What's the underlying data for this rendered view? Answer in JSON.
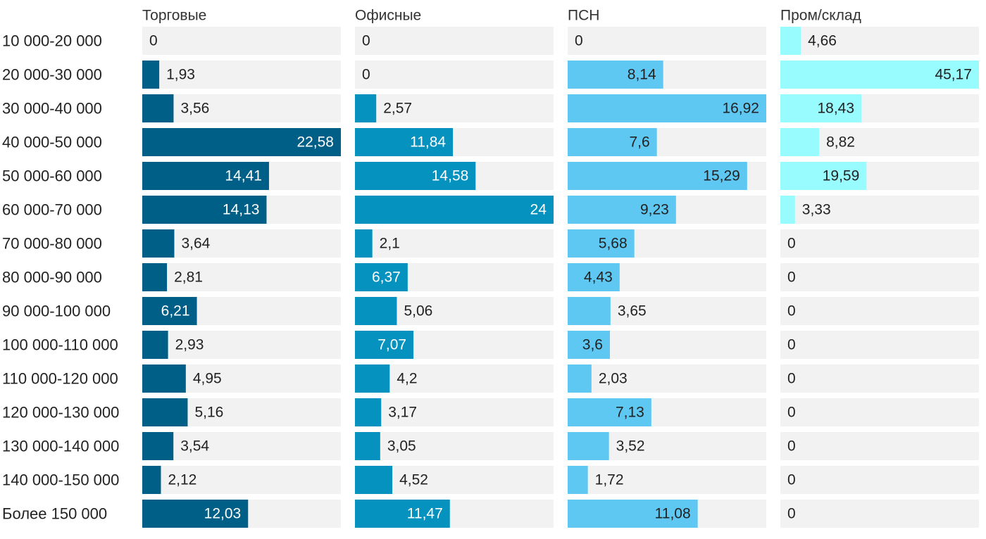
{
  "chart_data": {
    "type": "bar",
    "orientation": "horizontal",
    "layout": "small-multiples",
    "categories": [
      "10 000-20 000",
      "20 000-30 000",
      "30 000-40 000",
      "40 000-50 000",
      "50 000-60 000",
      "60 000-70 000",
      "70 000-80 000",
      "80 000-90 000",
      "90 000-100 000",
      "100 000-110 000",
      "110 000-120 000",
      "120 000-130 000",
      "130 000-140 000",
      "140 000-150 000",
      "Более 150 000"
    ],
    "series": [
      {
        "name": "Торговые",
        "color": "#005f87",
        "label_inside_color": "#ffffff",
        "max": 22.58,
        "values": [
          0,
          1.93,
          3.56,
          22.58,
          14.41,
          14.13,
          3.64,
          2.81,
          6.21,
          2.93,
          4.95,
          5.16,
          3.54,
          2.12,
          12.03
        ],
        "labels": [
          "0",
          "1,93",
          "3,56",
          "22,58",
          "14,41",
          "14,13",
          "3,64",
          "2,81",
          "6,21",
          "2,93",
          "4,95",
          "5,16",
          "3,54",
          "2,12",
          "12,03"
        ]
      },
      {
        "name": "Офисные",
        "color": "#0592bf",
        "label_inside_color": "#ffffff",
        "max": 24,
        "values": [
          0,
          0,
          2.57,
          11.84,
          14.58,
          24,
          2.1,
          6.37,
          5.06,
          7.07,
          4.2,
          3.17,
          3.05,
          4.52,
          11.47
        ],
        "labels": [
          "0",
          "0",
          "2,57",
          "11,84",
          "14,58",
          "24",
          "2,1",
          "6,37",
          "5,06",
          "7,07",
          "4,2",
          "3,17",
          "3,05",
          "4,52",
          "11,47"
        ]
      },
      {
        "name": "ПСН",
        "color": "#5ec7f2",
        "label_inside_color": "#222222",
        "max": 16.92,
        "values": [
          0,
          8.14,
          16.92,
          7.6,
          15.29,
          9.23,
          5.68,
          4.43,
          3.65,
          3.6,
          2.03,
          7.13,
          3.52,
          1.72,
          11.08
        ],
        "labels": [
          "0",
          "8,14",
          "16,92",
          "7,6",
          "15,29",
          "9,23",
          "5,68",
          "4,43",
          "3,65",
          "3,6",
          "2,03",
          "7,13",
          "3,52",
          "1,72",
          "11,08"
        ]
      },
      {
        "name": "Пром/склад",
        "color": "#98fbfd",
        "label_inside_color": "#222222",
        "max": 45.17,
        "values": [
          4.66,
          45.17,
          18.43,
          8.82,
          19.59,
          3.33,
          0,
          0,
          0,
          0,
          0,
          0,
          0,
          0,
          0
        ],
        "labels": [
          "4,66",
          "45,17",
          "18,43",
          "8,82",
          "19,59",
          "3,33",
          "0",
          "0",
          "0",
          "0",
          "0",
          "0",
          "0",
          "0",
          "0"
        ]
      }
    ],
    "title": "",
    "xlabel": "",
    "ylabel": "",
    "grid": false,
    "legend": "none",
    "track_color": "#f2f2f2",
    "label_outside_color": "#222222"
  }
}
